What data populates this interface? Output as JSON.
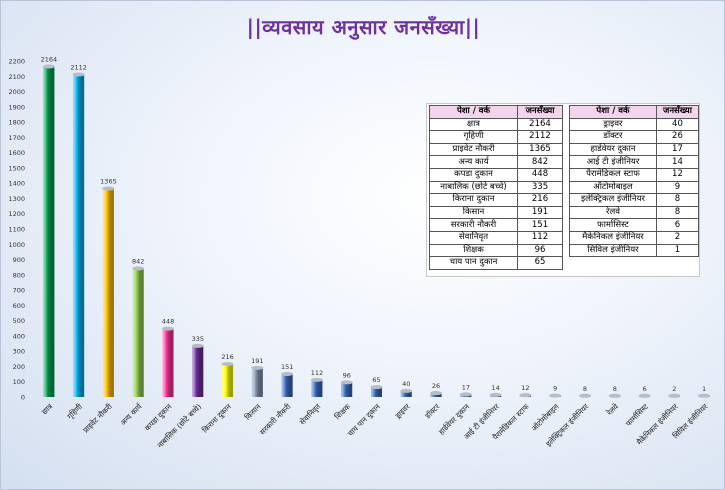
{
  "title": "||व्यवसाय अनुसार जनसँख्या||",
  "chart_data": {
    "type": "bar",
    "title": "||व्यवसाय अनुसार जनसँख्या||",
    "xlabel": "",
    "ylabel": "",
    "ylim": [
      0,
      2200
    ],
    "y_ticks": [
      0,
      100,
      200,
      300,
      400,
      500,
      600,
      700,
      800,
      900,
      1000,
      1100,
      1200,
      1300,
      1400,
      1500,
      1600,
      1700,
      1800,
      1900,
      2000,
      2100,
      2200
    ],
    "grid": false,
    "categories": [
      "छात्र",
      "गृहिणी",
      "प्राइवेट नौकरी",
      "अन्य कार्य",
      "कपडा दुकान",
      "नाबालिक (छोटे बच्चे)",
      "किराना दुकान",
      "किसान",
      "सरकारी नौकरी",
      "सेवानिवृत",
      "शिक्षक",
      "चाय पान दुकान",
      "ड्राइवर",
      "डॉक्टर",
      "हार्डवेयर दुकान",
      "आई टी इंजीनियर",
      "पैरामेडिकल स्टाफ",
      "ऑटोमोबाइल",
      "इलेक्ट्रिकल इंजीनियर",
      "रेलवे",
      "फार्मासिस्ट",
      "मैकेनिकल इंजीनियर",
      "सिविल इंजीनियर"
    ],
    "values": [
      2164,
      2112,
      1365,
      842,
      448,
      335,
      216,
      191,
      151,
      112,
      96,
      65,
      40,
      26,
      17,
      14,
      12,
      9,
      8,
      8,
      6,
      2,
      1
    ],
    "colors": [
      "#00a050",
      "#00b0f0",
      "#ffc000",
      "#92d050",
      "#ff3399",
      "#7030a0",
      "#ffff00",
      "#8497b0",
      "#3a6bc4",
      "#3a6bc4",
      "#3a6bc4",
      "#3a6bc4",
      "#3a6bc4",
      "#3a6bc4",
      "#3a6bc4",
      "#3a6bc4",
      "#3a6bc4",
      "#3a6bc4",
      "#3a6bc4",
      "#3a6bc4",
      "#3a6bc4",
      "#3a6bc4",
      "#3a6bc4"
    ]
  },
  "table": {
    "left": {
      "header": {
        "profession": "पेशा / वर्क",
        "population": "जनसँख्या"
      },
      "rows": [
        {
          "profession": "क्षात्र",
          "population": "2164"
        },
        {
          "profession": "गृहिणी",
          "population": "2112"
        },
        {
          "profession": "प्राइवेट नौकरी",
          "population": "1365"
        },
        {
          "profession": "अन्य कार्य",
          "population": "842"
        },
        {
          "profession": "कपडा दुकान",
          "population": "448"
        },
        {
          "profession": "नाबालिक (छोटे बच्चे)",
          "population": "335"
        },
        {
          "profession": "किराना दुकान",
          "population": "216"
        },
        {
          "profession": "किसान",
          "population": "191"
        },
        {
          "profession": "सरकारी नौकरी",
          "population": "151"
        },
        {
          "profession": "सेवानिवृत",
          "population": "112"
        },
        {
          "profession": "शिक्षक",
          "population": "96"
        },
        {
          "profession": "चाय पान दुकान",
          "population": "65"
        }
      ]
    },
    "right": {
      "header": {
        "profession": "पेशा / वर्क",
        "population": "जनसँख्या"
      },
      "rows": [
        {
          "profession": "ड्राइवर",
          "population": "40"
        },
        {
          "profession": "डॉक्टर",
          "population": "26"
        },
        {
          "profession": "हार्डवेयर दुकान",
          "population": "17"
        },
        {
          "profession": "आई टी इंजीनियर",
          "population": "14"
        },
        {
          "profession": "पैरामेडिकल स्टाफ",
          "population": "12"
        },
        {
          "profession": "ऑटोमोबाइल",
          "population": "9"
        },
        {
          "profession": "इलेक्ट्रिकल इंजीनियर",
          "population": "8"
        },
        {
          "profession": "रेलवे",
          "population": "8"
        },
        {
          "profession": "फार्मासिस्ट",
          "population": "6"
        },
        {
          "profession": "मैकेनिकल इंजीनियर",
          "population": "2"
        },
        {
          "profession": "सिविल इंजीनियर",
          "population": "1"
        }
      ]
    }
  }
}
